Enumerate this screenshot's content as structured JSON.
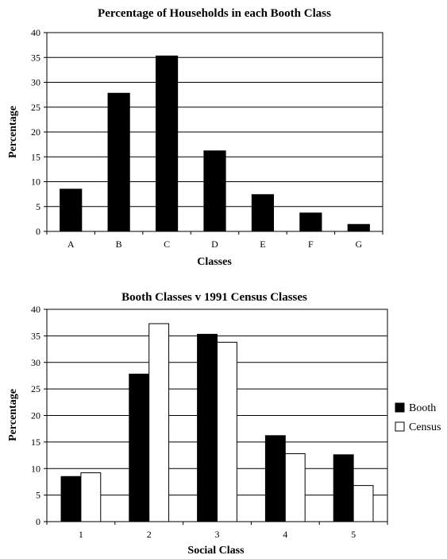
{
  "chart_data": [
    {
      "type": "bar",
      "title": "Percentage of Households in each Booth Class",
      "xlabel": "Classes",
      "ylabel": "Percentage",
      "categories": [
        "A",
        "B",
        "C",
        "D",
        "E",
        "F",
        "G"
      ],
      "values": [
        8.5,
        27.8,
        35.3,
        16.2,
        7.4,
        3.7,
        1.4
      ],
      "ylim": [
        0,
        40
      ],
      "yticks": [
        0,
        5,
        10,
        15,
        20,
        25,
        30,
        35,
        40
      ],
      "grid": true,
      "colors": {
        "bar": "#000000"
      }
    },
    {
      "type": "bar",
      "title": "Booth Classes v 1991 Census Classes",
      "xlabel": "Social Class",
      "ylabel": "Percentage",
      "categories": [
        "1",
        "2",
        "3",
        "4",
        "5"
      ],
      "series": [
        {
          "name": "Booth",
          "values": [
            8.5,
            27.8,
            35.3,
            16.2,
            12.6
          ],
          "color": "#000000"
        },
        {
          "name": "Census",
          "values": [
            9.2,
            37.3,
            33.8,
            12.8,
            6.8
          ],
          "color": "#ffffff"
        }
      ],
      "ylim": [
        0,
        40
      ],
      "yticks": [
        0,
        5,
        10,
        15,
        20,
        25,
        30,
        35,
        40
      ],
      "grid": true,
      "legend": "right"
    }
  ]
}
